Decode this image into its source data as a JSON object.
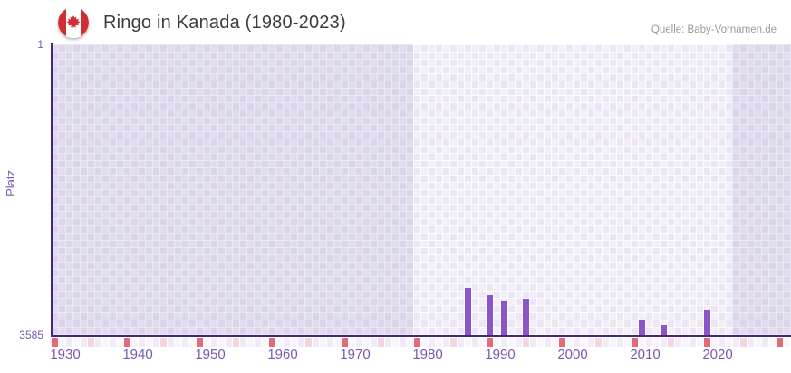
{
  "header": {
    "title": "Ringo in Kanada (1980-2023)",
    "source": "Quelle: Baby-Vornamen.de",
    "flag": "canada"
  },
  "chart_data": {
    "type": "bar",
    "title": "Ringo in Kanada (1980-2023)",
    "xlabel": "",
    "ylabel": "Platz",
    "y_axis": {
      "top_label": "1",
      "bottom_label": "3585",
      "min": 1,
      "max": 3585,
      "inverted": true
    },
    "x_axis": {
      "tick_labels": [
        "1930",
        "1940",
        "1950",
        "1960",
        "1970",
        "1980",
        "1990",
        "2000",
        "2010",
        "2020"
      ],
      "min_year": 1928,
      "max_year": 2029,
      "grid": "checkerboard"
    },
    "series": [
      {
        "name": "Platz",
        "points": [
          {
            "year": 1985,
            "rank": 3005
          },
          {
            "year": 1988,
            "rank": 3090
          },
          {
            "year": 1990,
            "rank": 3160
          },
          {
            "year": 1993,
            "rank": 3135
          },
          {
            "year": 2009,
            "rank": 3405
          },
          {
            "year": 2012,
            "rank": 3465
          },
          {
            "year": 2018,
            "rank": 3270
          }
        ]
      }
    ],
    "highlight_band": {
      "from_year": 1978,
      "to_year": 2022
    },
    "bottom_markers": {
      "red_years": [
        1928,
        1938,
        1948,
        1958,
        1968,
        1978,
        1988,
        1998,
        2008,
        2018,
        2028
      ],
      "pink_years": [
        1933,
        1943,
        1953,
        1963,
        1973,
        1983,
        1993,
        2003,
        2013,
        2023
      ]
    },
    "colors": {
      "bar": "#8c55c5",
      "axis": "#43257f",
      "tick_text": "#7b58b0",
      "title_text": "#3d3d3d",
      "source_text": "#9a9a9a",
      "checker_a": "#f2eff9",
      "checker_b": "#eae6f4",
      "band_shade": "rgba(92,64,150,0.10)",
      "marker_red": "#e26b78",
      "marker_pink": "#f3d5df",
      "strip_a": "#efebf8",
      "strip_b": "#f8f6fd",
      "flag_red": "#d12d35"
    }
  }
}
